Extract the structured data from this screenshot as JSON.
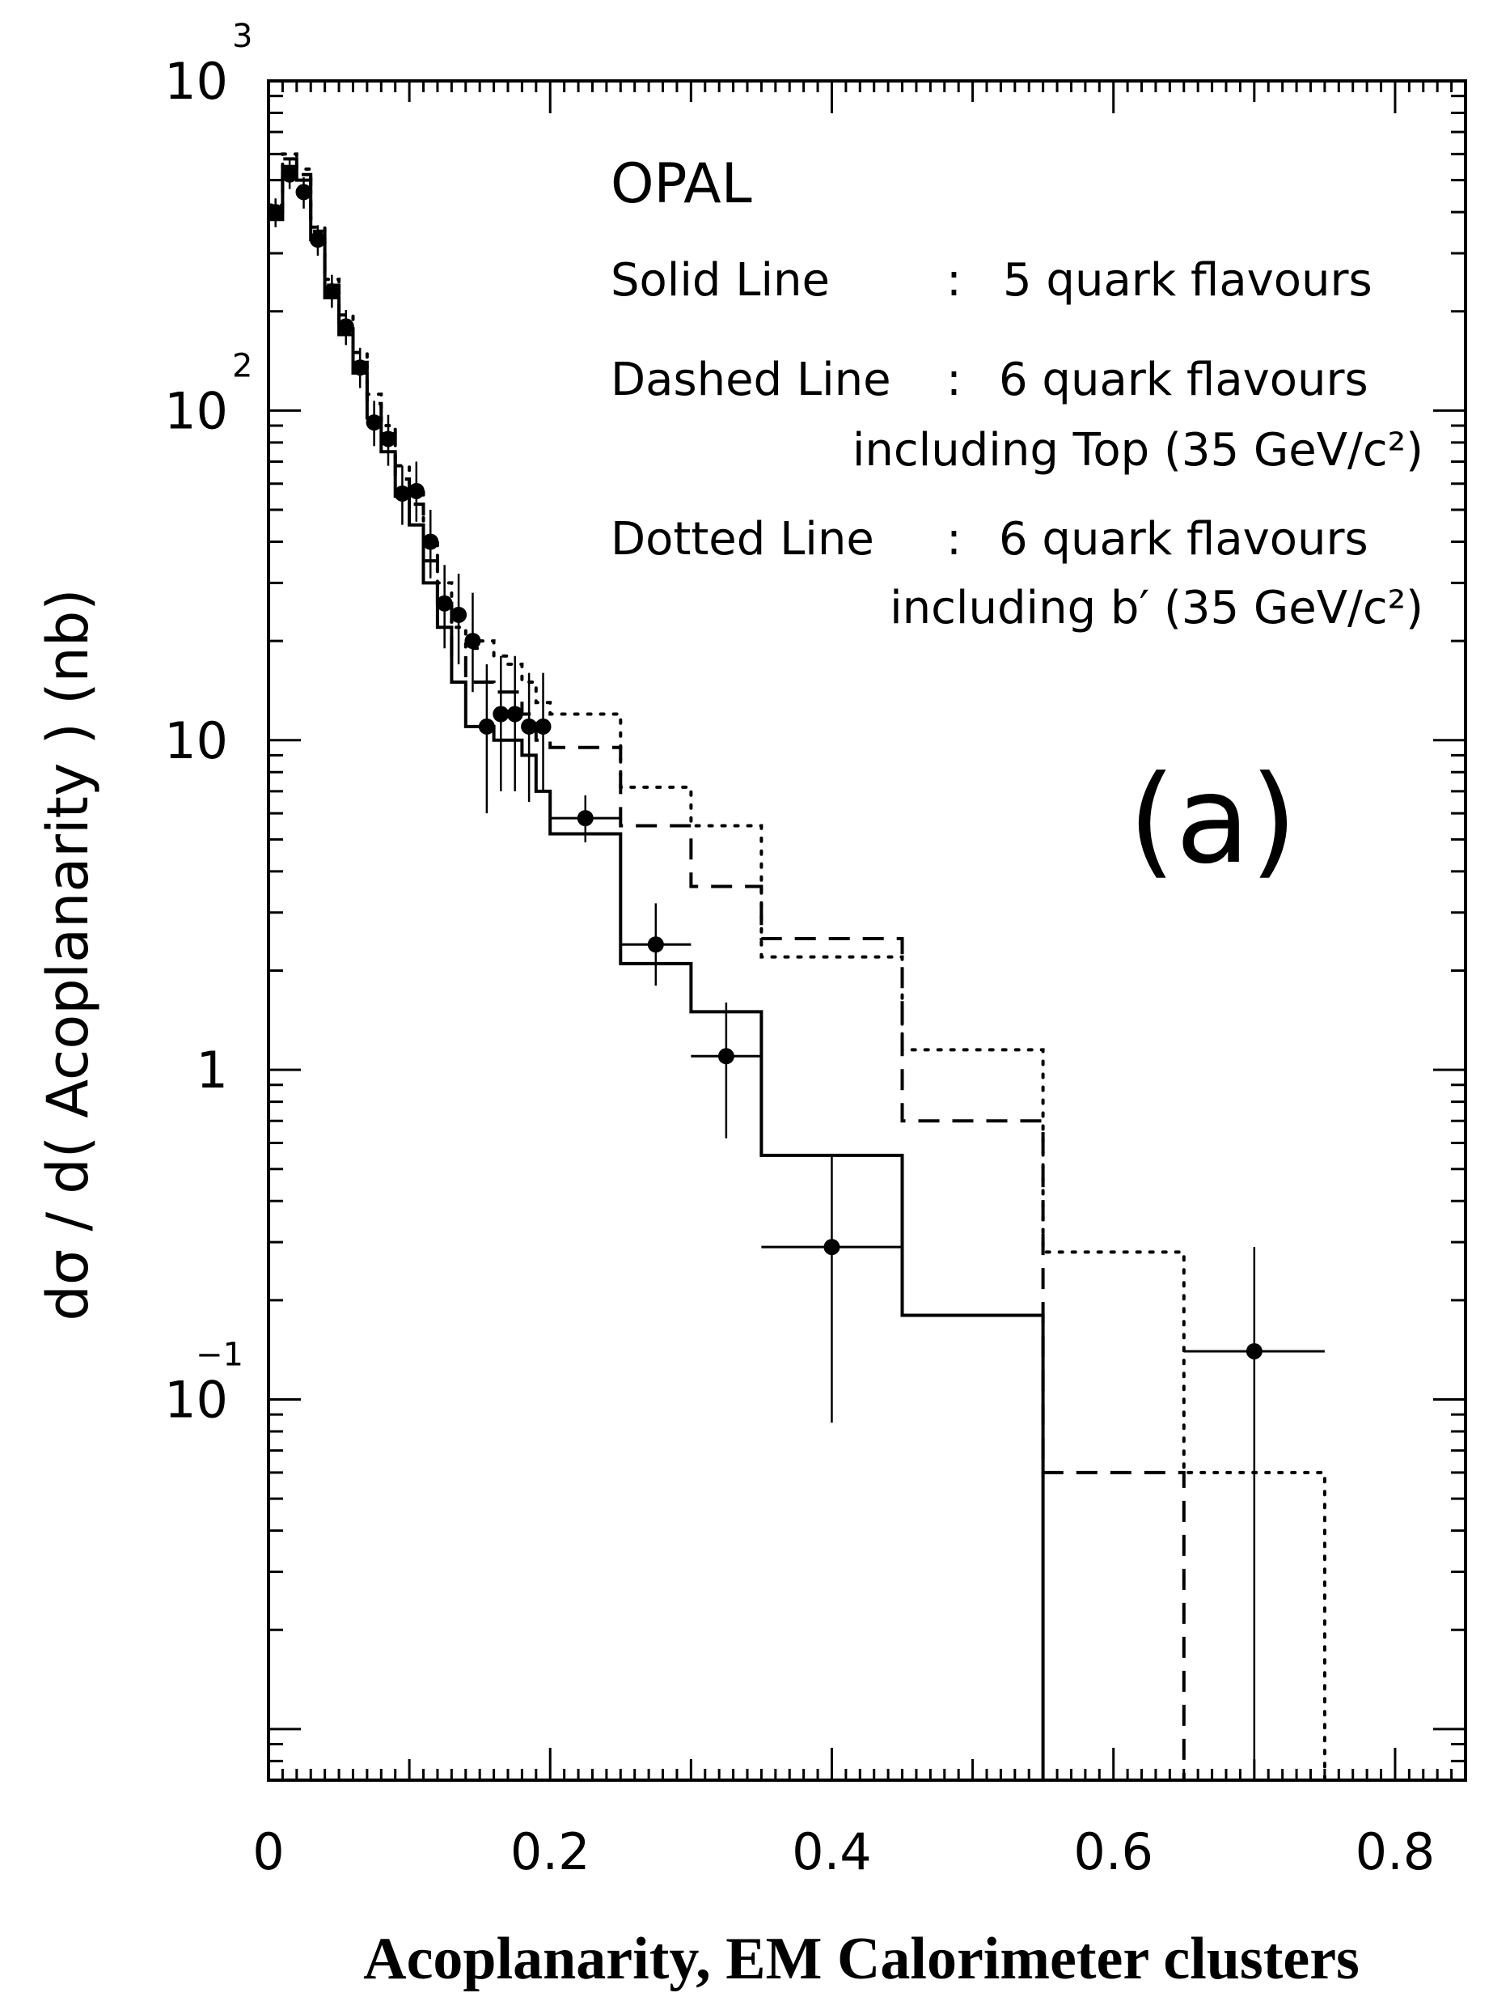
{
  "chart_data": {
    "type": "line",
    "title": "",
    "experiment_label": "OPAL",
    "panel_label": "(a)",
    "xlabel": "Acoplanarity,  EM Calorimeter clusters",
    "ylabel": "dσ / d( Acoplanarity ) (nb)",
    "xlim": [
      0,
      0.85
    ],
    "ylim": [
      0.007,
      1000
    ],
    "yscale": "log",
    "grid": false,
    "x_ticks": [
      {
        "value": 0,
        "label": "0"
      },
      {
        "value": 0.2,
        "label": "0.2"
      },
      {
        "value": 0.4,
        "label": "0.4"
      },
      {
        "value": 0.6,
        "label": "0.6"
      },
      {
        "value": 0.8,
        "label": "0.8"
      }
    ],
    "y_ticks": [
      {
        "value": 1000,
        "base": "10",
        "exp": "3"
      },
      {
        "value": 100,
        "base": "10",
        "exp": "2"
      },
      {
        "value": 10,
        "base": "10",
        "exp": ""
      },
      {
        "value": 1,
        "base": "1",
        "exp": ""
      },
      {
        "value": 0.1,
        "base": "10",
        "exp": "−1"
      }
    ],
    "legend": {
      "position": "top-right",
      "entries": [
        {
          "key": "Solid  Line",
          "sep": ":",
          "text": "5 quark flavours",
          "line2": ""
        },
        {
          "key": "Dashed Line",
          "sep": ":",
          "text": "6 quark flavours",
          "line2": "including Top  (35 GeV/c²)"
        },
        {
          "key": "Dotted Line",
          "sep": ":",
          "text": "6 quark flavours",
          "line2": "including b′  (35 GeV/c²)"
        }
      ]
    },
    "series": [
      {
        "style": "solid",
        "edges": [
          0,
          0.01,
          0.02,
          0.03,
          0.04,
          0.05,
          0.06,
          0.07,
          0.08,
          0.09,
          0.1,
          0.11,
          0.12,
          0.13,
          0.14,
          0.15,
          0.16,
          0.17,
          0.18,
          0.19,
          0.2,
          0.25,
          0.3,
          0.35,
          0.45,
          0.55
        ],
        "values": [
          380,
          550,
          500,
          330,
          220,
          170,
          130,
          95,
          75,
          55,
          45,
          30,
          22,
          15,
          11,
          11,
          10,
          10,
          9,
          7,
          5.2,
          2.1,
          1.5,
          0.55,
          0.18,
          0.004
        ]
      },
      {
        "style": "dashed",
        "edges": [
          0,
          0.01,
          0.02,
          0.03,
          0.04,
          0.05,
          0.06,
          0.07,
          0.08,
          0.09,
          0.1,
          0.11,
          0.12,
          0.13,
          0.14,
          0.15,
          0.16,
          0.17,
          0.18,
          0.19,
          0.2,
          0.25,
          0.3,
          0.35,
          0.45,
          0.55,
          0.65
        ],
        "values": [
          400,
          580,
          520,
          350,
          240,
          185,
          140,
          105,
          85,
          62,
          52,
          35,
          26,
          18,
          15,
          15,
          14,
          14,
          12,
          10,
          9.5,
          5.5,
          3.6,
          2.5,
          0.7,
          0.06,
          0.004
        ]
      },
      {
        "style": "dotted",
        "edges": [
          0,
          0.01,
          0.02,
          0.03,
          0.04,
          0.05,
          0.06,
          0.07,
          0.08,
          0.09,
          0.1,
          0.11,
          0.12,
          0.13,
          0.14,
          0.15,
          0.16,
          0.17,
          0.18,
          0.19,
          0.2,
          0.25,
          0.3,
          0.35,
          0.45,
          0.55,
          0.65,
          0.75
        ],
        "values": [
          420,
          600,
          540,
          360,
          250,
          195,
          150,
          112,
          90,
          68,
          58,
          40,
          30,
          22,
          19,
          20,
          18,
          17,
          15,
          13,
          12,
          7.2,
          5.5,
          2.2,
          1.15,
          0.28,
          0.06,
          0.004
        ]
      }
    ],
    "data_points": [
      {
        "x": 0.005,
        "y": 400,
        "xerr": 0.005,
        "ylo": 360,
        "yhi": 440
      },
      {
        "x": 0.015,
        "y": 520,
        "xerr": 0.005,
        "ylo": 470,
        "yhi": 580
      },
      {
        "x": 0.025,
        "y": 460,
        "xerr": 0.005,
        "ylo": 410,
        "yhi": 510
      },
      {
        "x": 0.035,
        "y": 330,
        "xerr": 0.005,
        "ylo": 295,
        "yhi": 365
      },
      {
        "x": 0.045,
        "y": 230,
        "xerr": 0.005,
        "ylo": 205,
        "yhi": 258
      },
      {
        "x": 0.055,
        "y": 180,
        "xerr": 0.005,
        "ylo": 158,
        "yhi": 202
      },
      {
        "x": 0.065,
        "y": 135,
        "xerr": 0.005,
        "ylo": 117,
        "yhi": 155
      },
      {
        "x": 0.075,
        "y": 92,
        "xerr": 0.005,
        "ylo": 78,
        "yhi": 107
      },
      {
        "x": 0.085,
        "y": 82,
        "xerr": 0.005,
        "ylo": 68,
        "yhi": 97
      },
      {
        "x": 0.095,
        "y": 56,
        "xerr": 0.005,
        "ylo": 45,
        "yhi": 68
      },
      {
        "x": 0.105,
        "y": 57,
        "xerr": 0.005,
        "ylo": 46,
        "yhi": 70
      },
      {
        "x": 0.115,
        "y": 40,
        "xerr": 0.005,
        "ylo": 31,
        "yhi": 50
      },
      {
        "x": 0.125,
        "y": 26,
        "xerr": 0.005,
        "ylo": 19,
        "yhi": 34
      },
      {
        "x": 0.135,
        "y": 24,
        "xerr": 0.005,
        "ylo": 17,
        "yhi": 32
      },
      {
        "x": 0.145,
        "y": 20,
        "xerr": 0.005,
        "ylo": 14,
        "yhi": 28
      },
      {
        "x": 0.155,
        "y": 11,
        "xerr": 0.005,
        "ylo": 6,
        "yhi": 17
      },
      {
        "x": 0.165,
        "y": 12,
        "xerr": 0.005,
        "ylo": 7,
        "yhi": 18
      },
      {
        "x": 0.175,
        "y": 12,
        "xerr": 0.005,
        "ylo": 7,
        "yhi": 18
      },
      {
        "x": 0.185,
        "y": 11,
        "xerr": 0.005,
        "ylo": 6.5,
        "yhi": 16
      },
      {
        "x": 0.195,
        "y": 11,
        "xerr": 0.005,
        "ylo": 7,
        "yhi": 16
      },
      {
        "x": 0.225,
        "y": 5.8,
        "xerr": 0.025,
        "ylo": 4.9,
        "yhi": 6.8
      },
      {
        "x": 0.275,
        "y": 2.4,
        "xerr": 0.025,
        "ylo": 1.8,
        "yhi": 3.2
      },
      {
        "x": 0.325,
        "y": 1.1,
        "xerr": 0.025,
        "ylo": 0.62,
        "yhi": 1.6
      },
      {
        "x": 0.4,
        "y": 0.29,
        "xerr": 0.05,
        "ylo": 0.085,
        "yhi": 0.55
      },
      {
        "x": 0.7,
        "y": 0.14,
        "xerr": 0.05,
        "ylo": 0.007,
        "yhi": 0.29
      }
    ]
  }
}
